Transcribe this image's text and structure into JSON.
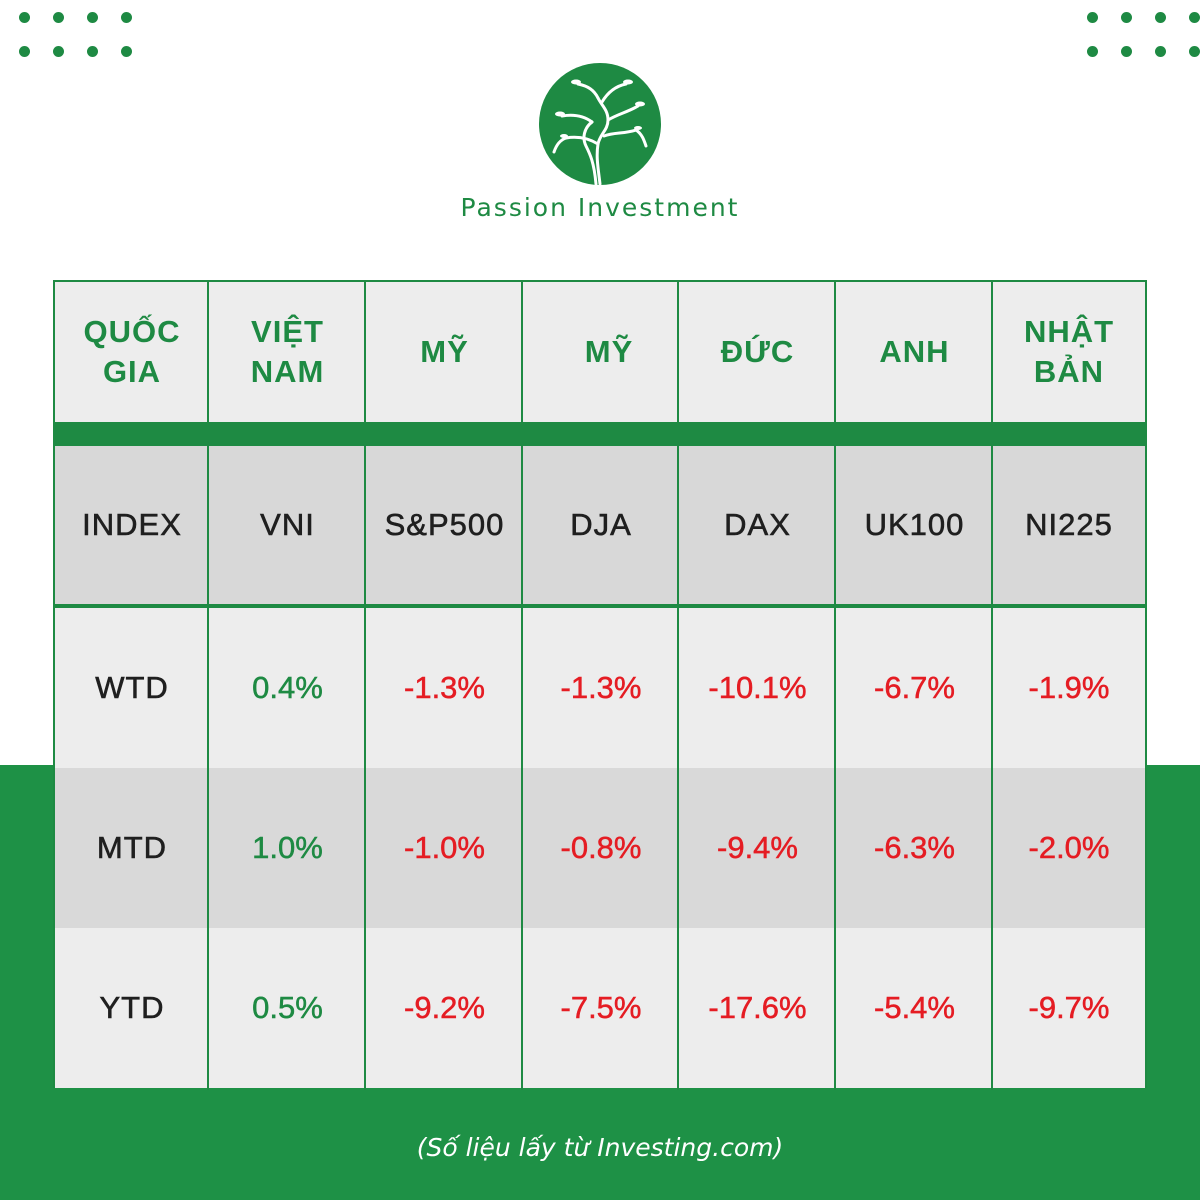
{
  "brand": {
    "name": "Passion Investment",
    "logo_icon": "tree-logo-icon",
    "accent_color": "#1e8a43",
    "negative_color": "#e51c23"
  },
  "table": {
    "header": {
      "label": "QUỐC GIA",
      "columns": [
        "VIỆT NAM",
        "MỸ",
        "MỸ",
        "ĐỨC",
        "ANH",
        "NHẬT BẢN"
      ]
    },
    "index_row": {
      "label": "INDEX",
      "values": [
        "VNI",
        "S&P500",
        "DJA",
        "DAX",
        "UK100",
        "NI225"
      ]
    },
    "rows": [
      {
        "label": "WTD",
        "values": [
          "0.4%",
          "-1.3%",
          "-1.3%",
          "-10.1%",
          "-6.7%",
          "-1.9%"
        ]
      },
      {
        "label": "MTD",
        "values": [
          "1.0%",
          "-1.0%",
          "-0.8%",
          "-9.4%",
          "-6.3%",
          "-2.0%"
        ]
      },
      {
        "label": "YTD",
        "values": [
          "0.5%",
          "-9.2%",
          "-7.5%",
          "-17.6%",
          "-5.4%",
          "-9.7%"
        ]
      }
    ]
  },
  "source_note": "(Số liệu lấy từ Investing.com)"
}
